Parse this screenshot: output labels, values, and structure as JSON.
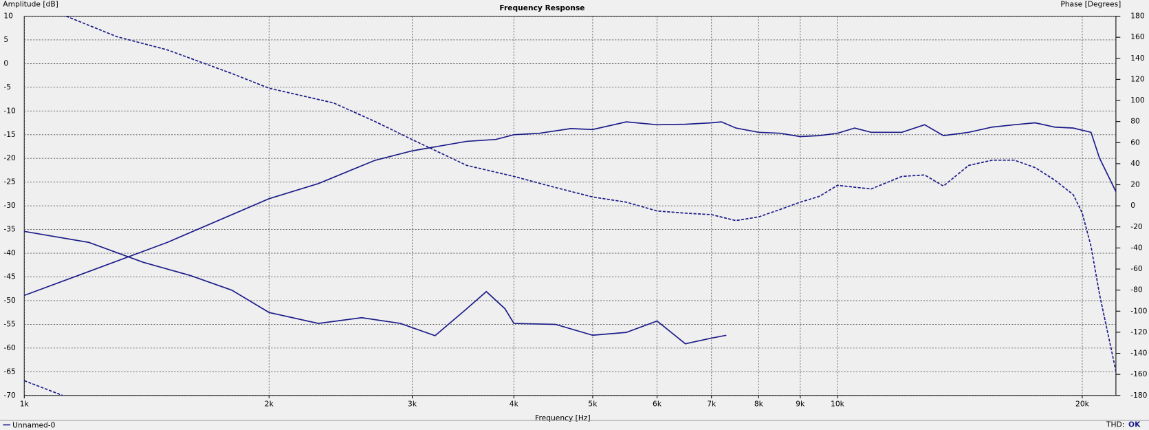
{
  "chart_data": {
    "type": "line",
    "title": "Frequency Response",
    "y_label": "Amplitude [dB]",
    "y2_label": "Phase [Degrees]",
    "x_label": "Frequency [Hz]",
    "log_x": true,
    "grid": true,
    "color": "#1c1c8a",
    "xlim": [
      1000,
      22000
    ],
    "xticks": [
      {
        "value": 1000,
        "label": "1k"
      },
      {
        "value": 2000,
        "label": "2k"
      },
      {
        "value": 3000,
        "label": "3k"
      },
      {
        "value": 4000,
        "label": "4k"
      },
      {
        "value": 5000,
        "label": "5k"
      },
      {
        "value": 6000,
        "label": "6k"
      },
      {
        "value": 7000,
        "label": "7k"
      },
      {
        "value": 8000,
        "label": "8k"
      },
      {
        "value": 9000,
        "label": "9k"
      },
      {
        "value": 10000,
        "label": "10k"
      },
      {
        "value": 20000,
        "label": "20k"
      }
    ],
    "ylim": [
      -70,
      10
    ],
    "yticks": [
      10,
      5,
      0,
      -5,
      -10,
      -15,
      -20,
      -25,
      -30,
      -35,
      -40,
      -45,
      -50,
      -55,
      -60,
      -65,
      -70
    ],
    "y2lim": [
      -180,
      180
    ],
    "y2ticks": [
      180,
      160,
      140,
      120,
      100,
      80,
      60,
      40,
      20,
      0,
      -20,
      -40,
      -60,
      -80,
      -100,
      -120,
      -140,
      -160,
      -180
    ],
    "series": [
      {
        "style": "solid",
        "x": [
          1000,
          1500,
          2000,
          2300,
          2700,
          3000,
          3500,
          3800,
          4000,
          4300,
          4700,
          5000,
          5500,
          6000,
          6500,
          7000,
          7200,
          7500,
          8000,
          8500,
          9000,
          9500,
          10000,
          10500,
          11000,
          12000,
          12800,
          13500,
          14500,
          15500,
          16500,
          17500,
          18500,
          19500,
          20500,
          21000,
          22000
        ],
        "values": [
          -48.9,
          -37.7,
          -28.5,
          -25.3,
          -20.4,
          -18.4,
          -16.4,
          -16,
          -15,
          -14.7,
          -13.7,
          -13.9,
          -12.3,
          -12.9,
          -12.8,
          -12.5,
          -12.3,
          -13.6,
          -14.5,
          -14.7,
          -15.4,
          -15.2,
          -14.7,
          -13.6,
          -14.5,
          -14.5,
          -12.9,
          -15.2,
          -14.5,
          -13.4,
          -12.9,
          -12.5,
          -13.4,
          -13.6,
          -14.5,
          -19.9,
          -27
        ]
      },
      {
        "style": "solid",
        "x": [
          1000,
          1200,
          1400,
          1600,
          1800,
          2000,
          2300,
          2600,
          2900,
          3200,
          3500,
          3700,
          3900,
          4000,
          4500,
          5000,
          5500,
          6000,
          6500,
          7000,
          7300
        ],
        "values": [
          -35.4,
          -37.7,
          -41.9,
          -44.7,
          -47.8,
          -52.5,
          -54.8,
          -53.6,
          -54.8,
          -57.4,
          -51.7,
          -48.1,
          -51.7,
          -54.8,
          -55,
          -57.3,
          -56.7,
          -54.3,
          -59.1,
          -57.9,
          -57.3
        ]
      },
      {
        "style": "dashed",
        "axis": "y2",
        "x": [
          1000,
          1115,
          1120,
          1126,
          1300,
          1500,
          1800,
          2000,
          2400,
          2700,
          3000,
          3500,
          4000,
          4500,
          5000,
          5500,
          6000,
          6500,
          7000,
          7500,
          8000,
          8500,
          9000,
          9500,
          10000,
          11000,
          12000,
          12800,
          13500,
          14500,
          15500,
          16500,
          17500,
          18500,
          19500,
          20000,
          20500,
          21000,
          22000
        ],
        "values": [
          -166,
          -180,
          null,
          180,
          160.5,
          148,
          125.6,
          111.6,
          97.7,
          80,
          62.8,
          38.4,
          27.9,
          17.4,
          8.4,
          3.5,
          -4.9,
          -7,
          -8.4,
          -14,
          -10.5,
          -3.5,
          3.5,
          9,
          19.5,
          16,
          27.9,
          29.3,
          18.8,
          38.4,
          43.3,
          43.3,
          36.3,
          24.4,
          10.5,
          -7,
          -38.4,
          -83.7,
          -157
        ]
      }
    ],
    "legend": "Unnamed-0",
    "status": {
      "label": "THD:",
      "value": "OK"
    }
  }
}
